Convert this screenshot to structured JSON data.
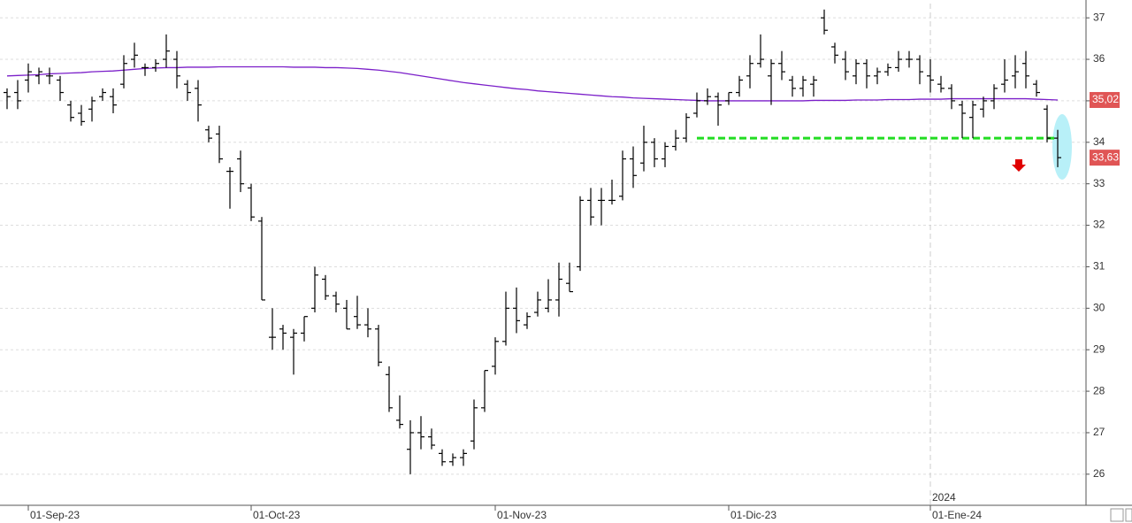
{
  "chart_data": {
    "type": "ohlc",
    "categories": [
      null,
      null,
      "01-Sep-23",
      null,
      null,
      null,
      null,
      null,
      null,
      null,
      null,
      null,
      null,
      null,
      null,
      null,
      null,
      null,
      null,
      null,
      null,
      null,
      null,
      "01-Oct-23",
      null,
      null,
      null,
      null,
      null,
      null,
      null,
      null,
      null,
      null,
      null,
      null,
      null,
      null,
      null,
      null,
      null,
      null,
      null,
      null,
      null,
      null,
      "01-Nov-23",
      null,
      null,
      null,
      null,
      null,
      null,
      null,
      null,
      null,
      null,
      null,
      null,
      null,
      null,
      null,
      null,
      null,
      null,
      null,
      null,
      null,
      "01-Dic-23",
      null,
      null,
      null,
      null,
      null,
      null,
      null,
      null,
      null,
      null,
      null,
      null,
      null,
      null,
      null,
      null,
      null,
      null,
      "01-Ene-24",
      null,
      null,
      null,
      null,
      null,
      null,
      null,
      null,
      null,
      null,
      null,
      null
    ],
    "open": [
      35.2,
      35.2,
      35.5,
      35.6,
      35.6,
      35.5,
      34.9,
      34.7,
      34.8,
      35.1,
      35.1,
      35.4,
      36.0,
      35.8,
      35.8,
      36.0,
      36.0,
      35.4,
      35.3,
      34.3,
      34.2,
      33.3,
      33.6,
      32.9,
      32.1,
      29.3,
      29.5,
      29.3,
      29.4,
      30.0,
      30.7,
      30.3,
      30.0,
      29.8,
      29.6,
      29.5,
      28.4,
      27.3,
      26.6,
      27.0,
      26.9,
      26.5,
      26.3,
      26.4,
      26.8,
      27.6,
      28.6,
      29.2,
      30.0,
      29.6,
      29.9,
      30.0,
      30.2,
      30.6,
      31.0,
      32.6,
      32.6,
      32.6,
      32.7,
      33.6,
      33.5,
      34.0,
      33.6,
      33.9,
      34.1,
      34.7,
      35.0,
      35.1,
      35.0,
      35.2,
      35.6,
      35.9,
      35.6,
      35.9,
      35.5,
      35.3,
      35.4,
      37.0,
      36.3,
      36.0,
      35.6,
      35.9,
      35.6,
      35.7,
      35.8,
      36.0,
      36.0,
      35.6,
      35.4,
      35.3,
      34.9,
      34.6,
      34.8,
      35.0,
      35.4,
      35.6,
      35.9,
      35.4,
      34.8,
      34.1
    ],
    "high": [
      35.3,
      35.5,
      35.9,
      35.8,
      35.8,
      35.6,
      35.0,
      34.9,
      35.1,
      35.3,
      35.3,
      36.1,
      36.4,
      35.9,
      36.0,
      36.6,
      36.2,
      35.5,
      35.5,
      34.4,
      34.4,
      33.4,
      33.8,
      33.0,
      32.2,
      30.0,
      29.6,
      29.5,
      29.8,
      31.0,
      30.8,
      30.4,
      30.2,
      30.3,
      30.0,
      29.6,
      28.6,
      27.9,
      27.3,
      27.4,
      27.1,
      26.6,
      26.5,
      26.6,
      27.8,
      28.5,
      29.3,
      30.4,
      30.5,
      29.9,
      30.4,
      30.7,
      31.1,
      31.1,
      32.7,
      32.9,
      32.9,
      33.1,
      33.8,
      33.9,
      34.4,
      34.1,
      34.0,
      34.3,
      34.7,
      35.2,
      35.3,
      35.2,
      35.2,
      35.6,
      36.1,
      36.6,
      36.0,
      36.2,
      35.6,
      35.6,
      35.6,
      37.2,
      36.4,
      36.2,
      36.0,
      36.0,
      35.8,
      35.9,
      36.2,
      36.2,
      36.1,
      36.0,
      35.6,
      35.4,
      35.0,
      35.0,
      35.1,
      35.4,
      36.0,
      36.1,
      36.2,
      35.5,
      34.9,
      34.3
    ],
    "low": [
      34.8,
      34.8,
      35.2,
      35.4,
      35.4,
      35.0,
      34.5,
      34.4,
      34.5,
      35.0,
      34.7,
      35.3,
      35.8,
      35.6,
      35.7,
      35.8,
      35.3,
      35.0,
      34.5,
      34.0,
      33.5,
      32.4,
      32.8,
      32.1,
      30.2,
      29.0,
      29.0,
      28.4,
      29.2,
      29.9,
      30.2,
      29.9,
      29.5,
      29.5,
      29.3,
      28.6,
      27.5,
      27.1,
      26.0,
      26.6,
      26.6,
      26.2,
      26.2,
      26.2,
      26.6,
      27.5,
      28.4,
      29.1,
      29.4,
      29.5,
      29.8,
      29.9,
      29.8,
      30.4,
      30.9,
      32.0,
      32.0,
      32.5,
      32.6,
      32.9,
      33.3,
      33.4,
      33.4,
      33.8,
      34.0,
      34.6,
      34.9,
      34.4,
      34.9,
      35.1,
      35.3,
      35.8,
      34.9,
      35.5,
      35.1,
      35.1,
      35.1,
      36.6,
      35.9,
      35.5,
      35.4,
      35.3,
      35.4,
      35.6,
      35.7,
      35.8,
      35.4,
      35.2,
      35.2,
      34.8,
      34.1,
      34.1,
      34.6,
      34.8,
      35.2,
      35.3,
      35.3,
      35.1,
      34.0,
      33.4
    ],
    "close": [
      35.1,
      35.0,
      35.7,
      35.7,
      35.6,
      35.2,
      34.6,
      34.5,
      35.0,
      35.2,
      34.9,
      35.9,
      36.1,
      35.8,
      35.9,
      36.2,
      35.6,
      35.2,
      34.9,
      34.1,
      33.6,
      33.3,
      33.0,
      32.2,
      30.2,
      29.3,
      29.4,
      29.4,
      29.8,
      30.8,
      30.3,
      30.1,
      29.5,
      29.6,
      29.5,
      28.7,
      27.6,
      27.2,
      27.0,
      26.9,
      26.7,
      26.3,
      26.4,
      26.5,
      27.6,
      28.5,
      29.2,
      30.0,
      29.7,
      29.8,
      30.2,
      30.2,
      30.7,
      30.4,
      32.6,
      32.2,
      32.6,
      32.6,
      33.6,
      33.2,
      34.0,
      33.6,
      33.9,
      34.1,
      34.6,
      35.0,
      35.1,
      34.9,
      35.2,
      35.5,
      35.9,
      36.0,
      35.9,
      35.7,
      35.3,
      35.5,
      35.5,
      36.7,
      36.1,
      35.7,
      35.9,
      35.6,
      35.7,
      35.8,
      36.0,
      36.0,
      35.7,
      35.5,
      35.3,
      35.0,
      34.7,
      34.9,
      35.0,
      35.3,
      35.5,
      35.7,
      35.6,
      35.2,
      34.1,
      33.63
    ],
    "bar_color": "#000000",
    "moving_average": {
      "color": "#7b1fc9",
      "values": [
        35.6,
        35.61,
        35.62,
        35.63,
        35.65,
        35.66,
        35.67,
        35.68,
        35.7,
        35.71,
        35.72,
        35.74,
        35.76,
        35.78,
        35.79,
        35.8,
        35.8,
        35.81,
        35.81,
        35.81,
        35.82,
        35.82,
        35.82,
        35.82,
        35.82,
        35.82,
        35.82,
        35.81,
        35.81,
        35.81,
        35.8,
        35.8,
        35.79,
        35.78,
        35.76,
        35.74,
        35.71,
        35.68,
        35.64,
        35.6,
        35.56,
        35.52,
        35.48,
        35.44,
        35.41,
        35.38,
        35.35,
        35.32,
        35.29,
        35.27,
        35.24,
        35.22,
        35.2,
        35.18,
        35.16,
        35.14,
        35.12,
        35.1,
        35.09,
        35.07,
        35.06,
        35.05,
        35.04,
        35.03,
        35.02,
        35.01,
        35.0,
        35.0,
        35.0,
        35.0,
        35.0,
        35.0,
        35.0,
        35.0,
        35.0,
        35.0,
        35.01,
        35.01,
        35.01,
        35.01,
        35.02,
        35.02,
        35.02,
        35.03,
        35.03,
        35.03,
        35.04,
        35.04,
        35.04,
        35.05,
        35.05,
        35.05,
        35.05,
        35.05,
        35.05,
        35.05,
        35.05,
        35.04,
        35.03,
        35.02
      ]
    },
    "support": {
      "color": "#22dd22",
      "values": [
        null,
        null,
        null,
        null,
        null,
        null,
        null,
        null,
        null,
        null,
        null,
        null,
        null,
        null,
        null,
        null,
        null,
        null,
        null,
        null,
        null,
        null,
        null,
        null,
        null,
        null,
        null,
        null,
        null,
        null,
        null,
        null,
        null,
        null,
        null,
        null,
        null,
        null,
        null,
        null,
        null,
        null,
        null,
        null,
        null,
        null,
        null,
        null,
        null,
        null,
        null,
        null,
        null,
        null,
        null,
        null,
        null,
        null,
        null,
        null,
        null,
        null,
        null,
        null,
        null,
        34.1,
        34.1,
        34.1,
        34.1,
        34.1,
        34.1,
        34.1,
        34.1,
        34.1,
        34.1,
        34.1,
        34.1,
        34.1,
        34.1,
        34.1,
        34.1,
        34.1,
        34.1,
        34.1,
        34.1,
        34.1,
        34.1,
        34.1,
        34.1,
        34.1,
        34.1,
        34.1,
        34.1,
        34.1,
        34.1,
        34.1,
        34.1,
        34.1,
        34.1,
        34.1
      ]
    },
    "price_tags": [
      {
        "value": 35.02,
        "label": "35,02"
      },
      {
        "value": 33.63,
        "label": "33,63"
      }
    ],
    "tag_color": "#e05555",
    "year_marker": "2024",
    "ylim": [
      25.25,
      37.43
    ],
    "yticks": [
      26,
      27,
      28,
      29,
      30,
      31,
      32,
      33,
      34,
      35,
      36,
      37
    ],
    "grid": true
  }
}
